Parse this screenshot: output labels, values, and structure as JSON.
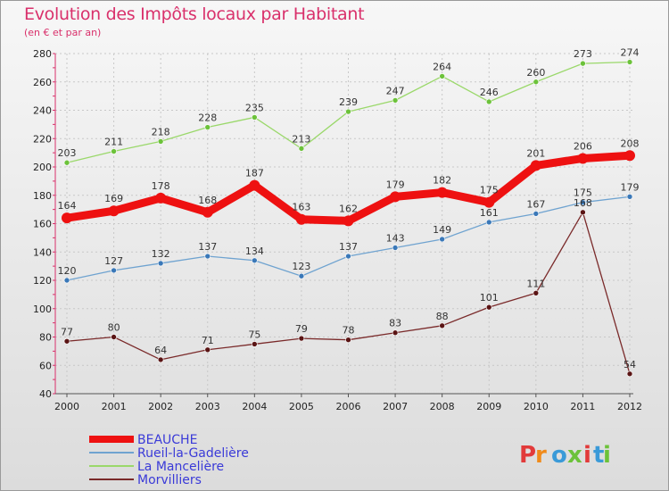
{
  "header": {
    "title": "Evolution des Impôts locaux par Habitant",
    "subtitle": "(en € et par an)"
  },
  "logo": {
    "text": "Proxiti"
  },
  "chart_data": {
    "type": "line",
    "title": "Evolution des Impôts locaux par Habitant",
    "subtitle": "(en € et par an)",
    "xlabel": "",
    "ylabel": "",
    "x": [
      "2000",
      "2001",
      "2002",
      "2003",
      "2004",
      "2005",
      "2006",
      "2007",
      "2008",
      "2009",
      "2010",
      "2011",
      "2012"
    ],
    "ylim": [
      40,
      280
    ],
    "yticks": [
      40,
      60,
      80,
      100,
      120,
      140,
      160,
      180,
      200,
      220,
      240,
      260,
      280
    ],
    "grid": true,
    "legend_position": "bottom-left",
    "series": [
      {
        "name": "BEAUCHE",
        "color": "#ee1111",
        "width": 9,
        "marker_color": "#ee1111",
        "values": [
          164,
          169,
          178,
          168,
          187,
          163,
          162,
          179,
          182,
          175,
          201,
          206,
          208
        ]
      },
      {
        "name": "Rueil-la-Gadelière",
        "color": "#6fa3d0",
        "width": 1.3,
        "marker_color": "#3a78b8",
        "values": [
          120,
          127,
          132,
          137,
          134,
          123,
          137,
          143,
          149,
          161,
          167,
          175,
          179
        ]
      },
      {
        "name": "La Mancelière",
        "color": "#9ad86a",
        "width": 1.3,
        "marker_color": "#6cc23a",
        "values": [
          203,
          211,
          218,
          228,
          235,
          213,
          239,
          247,
          264,
          246,
          260,
          273,
          274
        ]
      },
      {
        "name": "Morvilliers",
        "color": "#7a2a2a",
        "width": 1.3,
        "marker_color": "#5a1414",
        "values": [
          77,
          80,
          64,
          71,
          75,
          79,
          78,
          83,
          88,
          101,
          111,
          168,
          54
        ]
      }
    ]
  }
}
